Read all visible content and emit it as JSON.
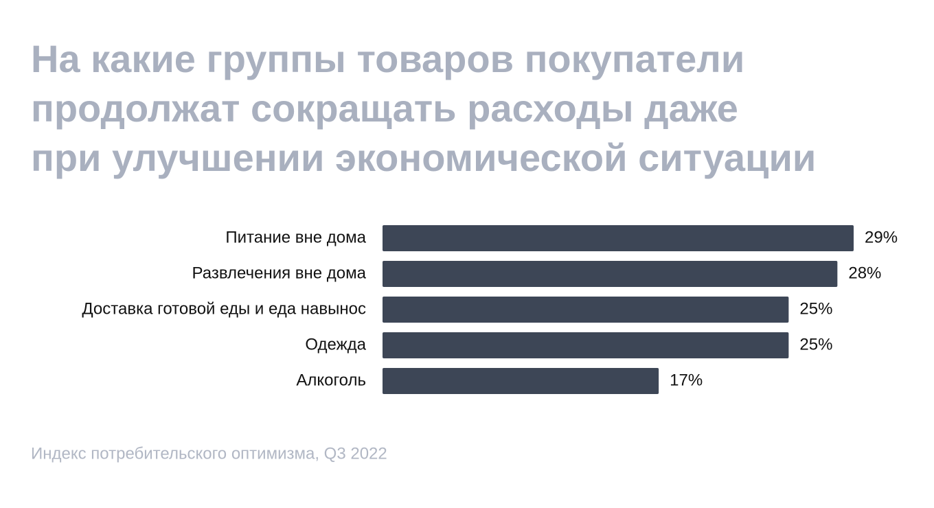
{
  "chart_data": {
    "type": "bar",
    "orientation": "horizontal",
    "title": [
      "На какие группы товаров покупатели",
      "продолжат сокращать расходы даже",
      "при улучшении экономической ситуации"
    ],
    "categories": [
      "Питание вне дома",
      "Развлечения вне дома",
      "Доставка готовой еды и еда навынос",
      "Одежда",
      "Алкоголь"
    ],
    "values": [
      29,
      28,
      25,
      25,
      17
    ],
    "value_labels": [
      "29%",
      "28%",
      "25%",
      "25%",
      "17%"
    ],
    "color": "#3d4656",
    "source": "Индекс потребительского оптимизма, Q3 2022"
  }
}
